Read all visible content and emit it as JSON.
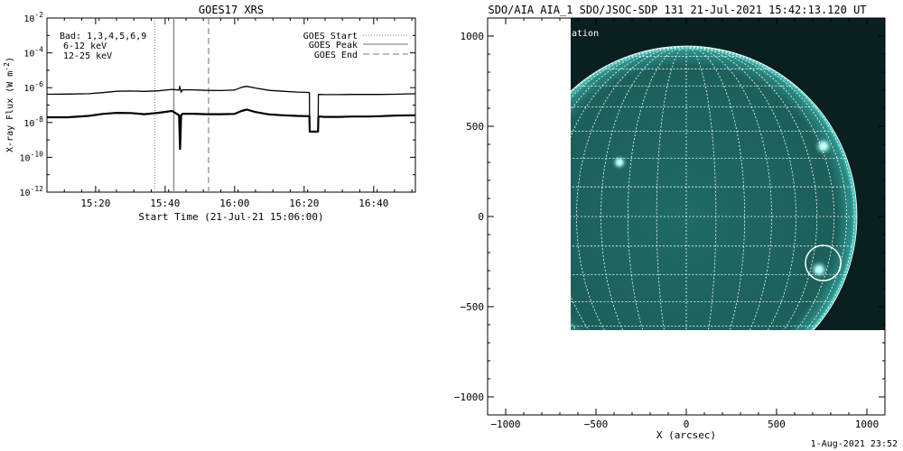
{
  "footer_timestamp": "1-Aug-2021 23:52",
  "chart_data": [
    {
      "type": "line",
      "title": "GOES17 XRS",
      "xlabel": "Start Time (21-Jul-21 15:06:00)",
      "ylabel": "X-ray Flux (W m⁻²)",
      "ylabel_main": "X-ray Flux (W m",
      "ylabel_exp": "-2",
      "ylabel_close": ")",
      "yscale": "log",
      "xlim_minutes": [
        0,
        106
      ],
      "ylim": [
        1e-12,
        0.01
      ],
      "x_ticks": [
        {
          "minute": 14,
          "label": "15:20"
        },
        {
          "minute": 34,
          "label": "15:40"
        },
        {
          "minute": 54,
          "label": "16:00"
        },
        {
          "minute": 74,
          "label": "16:20"
        },
        {
          "minute": 94,
          "label": "16:40"
        }
      ],
      "y_ticks": [
        {
          "exp": -2,
          "base": "10",
          "sup": "-2"
        },
        {
          "exp": -4,
          "base": "10",
          "sup": "-4"
        },
        {
          "exp": -6,
          "base": "10",
          "sup": "-6"
        },
        {
          "exp": -8,
          "base": "10",
          "sup": "-8"
        },
        {
          "exp": -10,
          "base": "10",
          "sup": "-10"
        },
        {
          "exp": -12,
          "base": "10",
          "sup": "-12"
        }
      ],
      "annotations": [
        {
          "text": "Bad: 1,3,4,5,6,9",
          "color": "#000000"
        },
        {
          "text": "6-12 keV",
          "color": "#d400d4"
        },
        {
          "text": "12-25 keV",
          "color": "#00cc00"
        }
      ],
      "legend": {
        "position": "top-right",
        "entries": [
          {
            "label": "GOES Start",
            "style": "dotted"
          },
          {
            "label": "GOES Peak",
            "style": "solid"
          },
          {
            "label": "GOES End",
            "style": "dashed"
          }
        ]
      },
      "event_lines": [
        {
          "name": "GOES Start",
          "minute": 31,
          "style": "dotted"
        },
        {
          "name": "GOES Peak",
          "minute": 36.5,
          "style": "solid"
        },
        {
          "name": "GOES End",
          "minute": 46.5,
          "style": "dashed"
        }
      ],
      "series": [
        {
          "key": "long",
          "color": "#000000",
          "x": [
            0,
            6,
            12,
            16,
            20,
            24,
            28,
            32,
            36,
            38,
            38.2,
            38.6,
            39,
            42,
            46,
            50,
            54,
            56,
            57.5,
            60,
            64,
            68,
            72,
            75.5,
            75.6,
            78,
            78.1,
            80,
            84,
            88,
            92,
            96,
            100,
            106
          ],
          "y": [
            4.2e-07,
            4.3e-07,
            4.5e-07,
            5.2e-07,
            6.2e-07,
            6.4e-07,
            6.1e-07,
            6.6e-07,
            8e-07,
            7.3e-07,
            1.2e-06,
            5.5e-07,
            7.6e-07,
            7.5e-07,
            7e-07,
            6.8e-07,
            7.3e-07,
            1.05e-06,
            1.2e-06,
            9.5e-07,
            7e-07,
            6.2e-07,
            5.6e-07,
            5.3e-07,
            3e-09,
            3e-09,
            4.1e-07,
            4e-07,
            4e-07,
            4.1e-07,
            4.1e-07,
            4.1e-07,
            4.2e-07,
            4.5e-07
          ]
        },
        {
          "key": "short",
          "color": "#000000",
          "x": [
            0,
            6,
            12,
            16,
            20,
            24,
            28,
            32,
            36,
            38,
            38.3,
            38.6,
            39,
            42,
            46,
            50,
            54,
            56,
            57.5,
            60,
            64,
            68,
            72,
            75.5,
            75.6,
            78,
            78.1,
            80,
            84,
            88,
            92,
            96,
            100,
            106
          ],
          "y": [
            2e-08,
            2e-08,
            2.4e-08,
            3.1e-08,
            3.6e-08,
            3.5e-08,
            3e-08,
            3.6e-08,
            4.6e-08,
            2.6e-08,
            3e-10,
            2.6e-08,
            3.2e-08,
            3.2e-08,
            3e-08,
            3e-08,
            3.1e-08,
            4.6e-08,
            5.5e-08,
            4e-08,
            2.9e-08,
            2.6e-08,
            2.4e-08,
            2.3e-08,
            3e-09,
            3e-09,
            2.2e-08,
            2.1e-08,
            2.1e-08,
            2.2e-08,
            2.2e-08,
            2.3e-08,
            2.5e-08,
            2.6e-08
          ]
        }
      ]
    },
    {
      "type": "heatmap",
      "title": "SDO/AIA AIA_1 SDO/JSOC-SDP 131 21-Jul-2021 15:42:13.120 UT",
      "xlabel": "X (arcsec)",
      "ylabel": "",
      "xlim": [
        -1100,
        1100
      ],
      "ylim": [
        -1100,
        1100
      ],
      "x_ticks": [
        {
          "value": -1000,
          "label": "−1000"
        },
        {
          "value": -500,
          "label": "−500"
        },
        {
          "value": 0,
          "label": "0"
        },
        {
          "value": 500,
          "label": "500"
        },
        {
          "value": 1000,
          "label": "1000"
        }
      ],
      "y_ticks": [
        {
          "value": 1000,
          "label": "1000"
        },
        {
          "value": 500,
          "label": "500"
        },
        {
          "value": 0,
          "label": "0"
        },
        {
          "value": -500,
          "label": "−500"
        },
        {
          "value": -1000,
          "label": "−1000"
        }
      ],
      "image_extent": {
        "x": [
          -640,
          1100
        ],
        "y": [
          -630,
          1100
        ]
      },
      "solar_disk": {
        "center": [
          0,
          0
        ],
        "radius": 945
      },
      "grid_spacing_deg": 10,
      "colors": {
        "disk": "#1b5c59",
        "offdisk": "#0a1f1f",
        "grid": "#ffffff",
        "bright": "#b8f7f1"
      },
      "bright_regions": [
        {
          "x": 760,
          "y": 390,
          "r": 55
        },
        {
          "x": -370,
          "y": 300,
          "r": 45
        },
        {
          "x": 735,
          "y": -295,
          "r": 55
        }
      ],
      "roi_circle": {
        "x": 758,
        "y": -258,
        "r": 98
      },
      "clipped_label": "ation"
    }
  ]
}
